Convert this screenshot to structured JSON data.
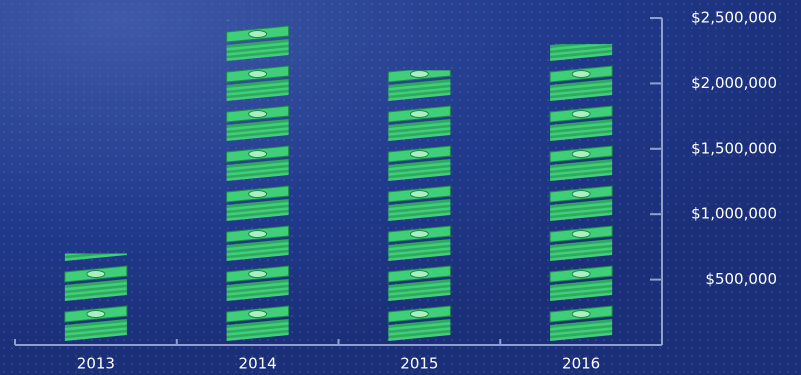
{
  "chart_data": {
    "type": "pictograph-bar",
    "categories": [
      "2013",
      "2014",
      "2015",
      "2016"
    ],
    "values": [
      700000,
      2480000,
      2100000,
      2300000
    ],
    "color": "#3fcf78",
    "ylim": [
      0,
      2500000
    ],
    "yticks": [
      {
        "value": 500000,
        "label": "$500,000"
      },
      {
        "value": 1000000,
        "label": "$1,000,000"
      },
      {
        "value": 1500000,
        "label": "$1,500,000"
      },
      {
        "value": 2000000,
        "label": "$2,000,000"
      },
      {
        "value": 2500000,
        "label": "$2,500,000"
      }
    ],
    "grid": false
  }
}
